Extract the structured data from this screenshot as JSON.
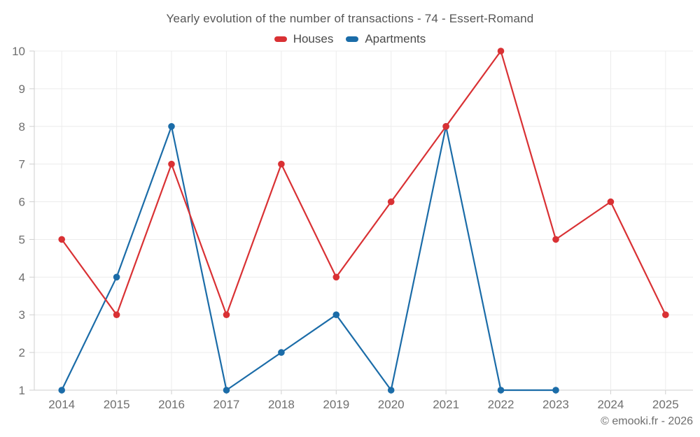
{
  "chart_data": {
    "type": "line",
    "title": "Yearly evolution of the number of transactions - 74 - Essert-Romand",
    "categories": [
      "2014",
      "2015",
      "2016",
      "2017",
      "2018",
      "2019",
      "2020",
      "2021",
      "2022",
      "2023",
      "2024",
      "2025"
    ],
    "series": [
      {
        "name": "Houses",
        "color": "#d93134",
        "values": [
          5,
          3,
          7,
          3,
          7,
          4,
          6,
          8,
          10,
          5,
          6,
          3
        ]
      },
      {
        "name": "Apartments",
        "color": "#1b6ca8",
        "values": [
          1,
          4,
          8,
          1,
          2,
          3,
          1,
          8,
          1,
          1,
          null,
          null
        ]
      }
    ],
    "xlabel": "",
    "ylabel": "",
    "ylim": [
      1,
      10
    ],
    "ytick_step": 1,
    "grid": true,
    "legend_position": "top"
  },
  "footer": {
    "copyright": "© emooki.fr - 2026"
  },
  "colors": {
    "grid": "#ececec",
    "axis_line": "#cfcfcf",
    "tick_text": "#6f6f6f",
    "title_text": "#565656"
  }
}
